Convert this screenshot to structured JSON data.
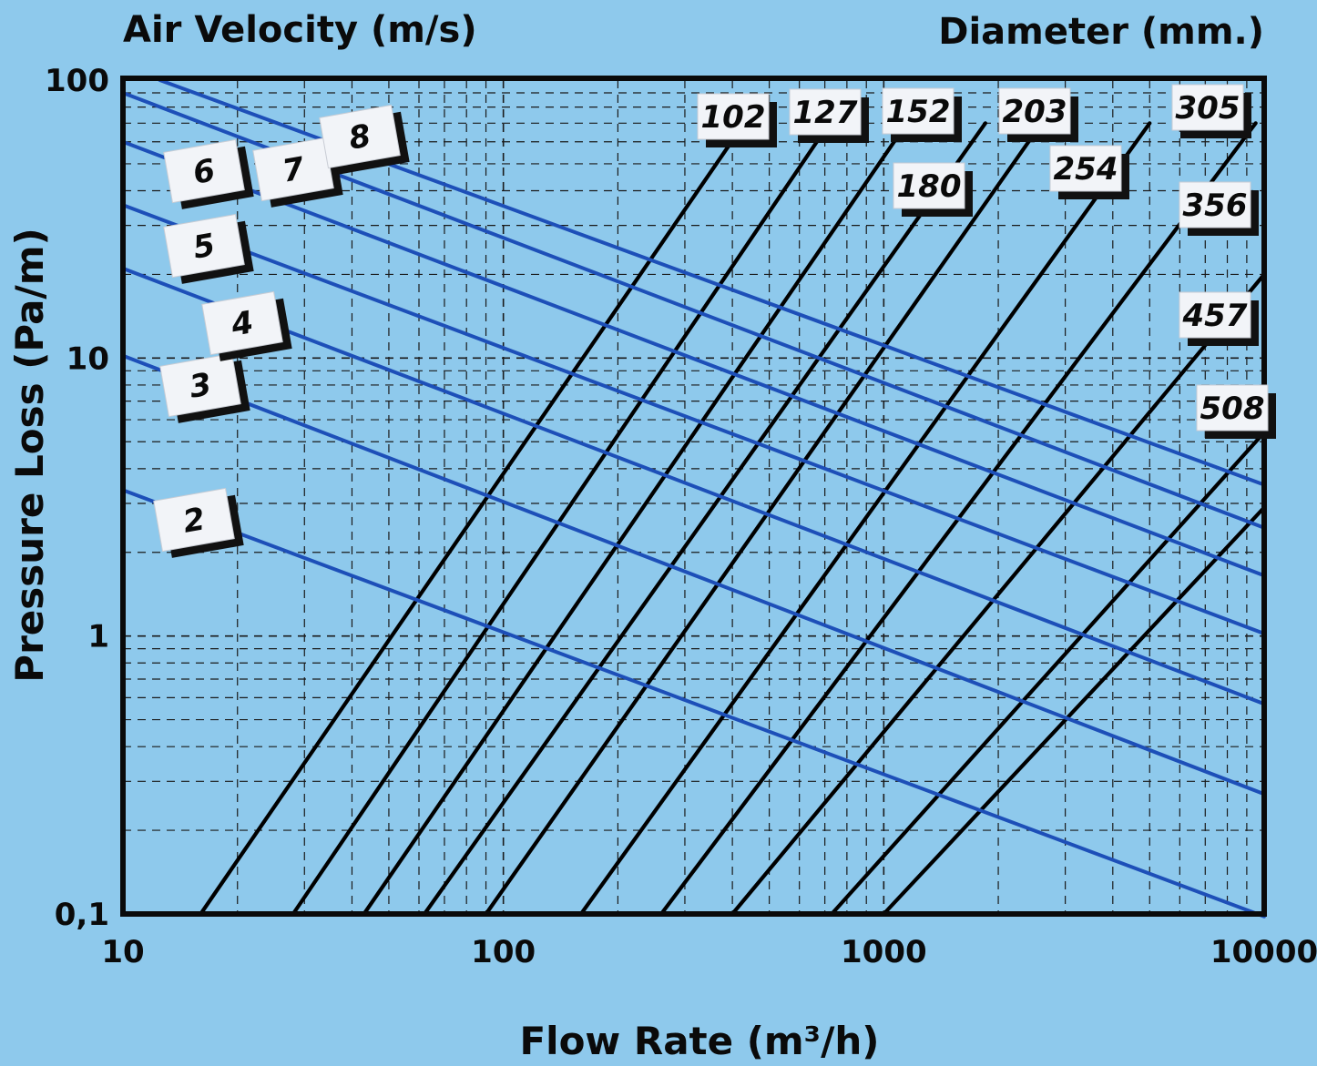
{
  "colors": {
    "background": "#8ec9ec",
    "plot_background": "#8ec9ec",
    "velocity_line": "#1d4fb8",
    "diameter_line": "#000000",
    "grid": "#1a1a1a",
    "label_box": "#f2f4f8"
  },
  "chart_data": {
    "type": "line",
    "title": "",
    "top_left_heading": "Air Velocity (m/s)",
    "top_right_heading": "Diameter (mm.)",
    "xlabel": "Flow Rate (m³/h)",
    "ylabel": "Pressure Loss (Pa/m)",
    "x_scale": "log",
    "y_scale": "log",
    "xlim": [
      10,
      10000
    ],
    "ylim": [
      0.1,
      100
    ],
    "x_ticks": [
      "10",
      "100",
      "1000",
      "10000"
    ],
    "y_ticks": [
      "0,1",
      "1",
      "10",
      "100"
    ],
    "grid": true,
    "velocity_series": [
      {
        "name": "2",
        "x": [
          10,
          10000
        ],
        "y": [
          3.35,
          0.098
        ]
      },
      {
        "name": "3",
        "x": [
          10,
          10000
        ],
        "y": [
          10.2,
          0.27
        ]
      },
      {
        "name": "4",
        "x": [
          10,
          10000
        ],
        "y": [
          21,
          0.57
        ]
      },
      {
        "name": "5",
        "x": [
          10,
          10000
        ],
        "y": [
          35.5,
          1.02
        ]
      },
      {
        "name": "6",
        "x": [
          10,
          10000
        ],
        "y": [
          60,
          1.65
        ]
      },
      {
        "name": "7",
        "x": [
          10,
          10000
        ],
        "y": [
          90,
          2.45
        ]
      },
      {
        "name": "8",
        "x": [
          12.5,
          10000
        ],
        "y": [
          100,
          3.5
        ]
      }
    ],
    "diameter_series": [
      {
        "name": "102",
        "x": [
          16,
          430
        ],
        "y": [
          0.1,
          70
        ]
      },
      {
        "name": "127",
        "x": [
          28,
          720
        ],
        "y": [
          0.1,
          70
        ]
      },
      {
        "name": "152",
        "x": [
          43,
          1150
        ],
        "y": [
          0.1,
          70
        ]
      },
      {
        "name": "180",
        "x": [
          62,
          1850
        ],
        "y": [
          0.1,
          70
        ]
      },
      {
        "name": "203",
        "x": [
          90,
          2600
        ],
        "y": [
          0.1,
          70
        ]
      },
      {
        "name": "254",
        "x": [
          160,
          5000
        ],
        "y": [
          0.1,
          70
        ]
      },
      {
        "name": "305",
        "x": [
          260,
          9500
        ],
        "y": [
          0.1,
          70
        ]
      },
      {
        "name": "356",
        "x": [
          400,
          10000
        ],
        "y": [
          0.1,
          20
        ]
      },
      {
        "name": "457",
        "x": [
          730,
          10000
        ],
        "y": [
          0.1,
          5.4
        ]
      },
      {
        "name": "508",
        "x": [
          1000,
          10000
        ],
        "y": [
          0.1,
          2.9
        ]
      }
    ]
  }
}
